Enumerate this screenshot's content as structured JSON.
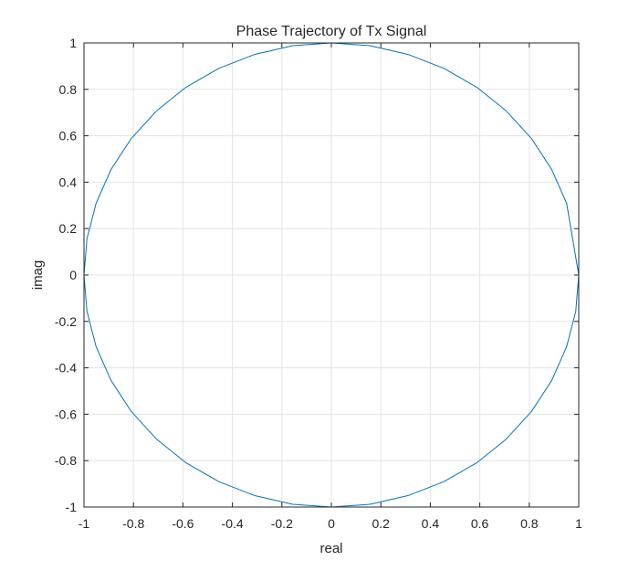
{
  "chart_data": {
    "type": "line",
    "title": "Phase Trajectory of Tx Signal",
    "xlabel": "real",
    "ylabel": "imag",
    "xlim": [
      -1,
      1
    ],
    "ylim": [
      -1,
      1
    ],
    "xticks": [
      -1,
      -0.8,
      -0.6,
      -0.4,
      -0.2,
      0,
      0.2,
      0.4,
      0.6,
      0.8,
      1
    ],
    "yticks": [
      -1,
      -0.8,
      -0.6,
      -0.4,
      -0.2,
      0,
      0.2,
      0.4,
      0.6,
      0.8,
      1
    ],
    "xtick_labels": [
      "-1",
      "-0.8",
      "-0.6",
      "-0.4",
      "-0.2",
      "0",
      "0.2",
      "0.4",
      "0.6",
      "0.8",
      "1"
    ],
    "ytick_labels": [
      "-1",
      "-0.8",
      "-0.6",
      "-0.4",
      "-0.2",
      "0",
      "0.2",
      "0.4",
      "0.6",
      "0.8",
      "1"
    ],
    "grid": true,
    "box": true,
    "series": [
      {
        "color": "#0072BD",
        "x": [
          1.0,
          0.951,
          0.891,
          0.809,
          0.707,
          0.588,
          0.454,
          0.309,
          0.156,
          0.0,
          -0.156,
          -0.309,
          -0.454,
          -0.588,
          -0.707,
          -0.809,
          -0.891,
          -0.951,
          -0.988,
          -1.0,
          -0.988,
          -0.951,
          -0.891,
          -0.809,
          -0.707,
          -0.588,
          -0.454,
          -0.309,
          -0.156,
          0.0,
          0.156,
          0.309,
          0.454,
          0.588,
          0.707,
          0.809,
          0.891,
          0.951,
          0.988,
          1.0
        ],
        "y": [
          0.0,
          0.309,
          0.454,
          0.588,
          0.707,
          0.809,
          0.891,
          0.951,
          0.988,
          1.0,
          0.988,
          0.951,
          0.891,
          0.809,
          0.707,
          0.588,
          0.454,
          0.309,
          0.156,
          0.0,
          -0.156,
          -0.309,
          -0.454,
          -0.588,
          -0.707,
          -0.809,
          -0.891,
          -0.951,
          -0.988,
          -1.0,
          -0.988,
          -0.951,
          -0.891,
          -0.809,
          -0.707,
          -0.588,
          -0.454,
          -0.309,
          -0.156,
          0.0
        ]
      }
    ]
  }
}
